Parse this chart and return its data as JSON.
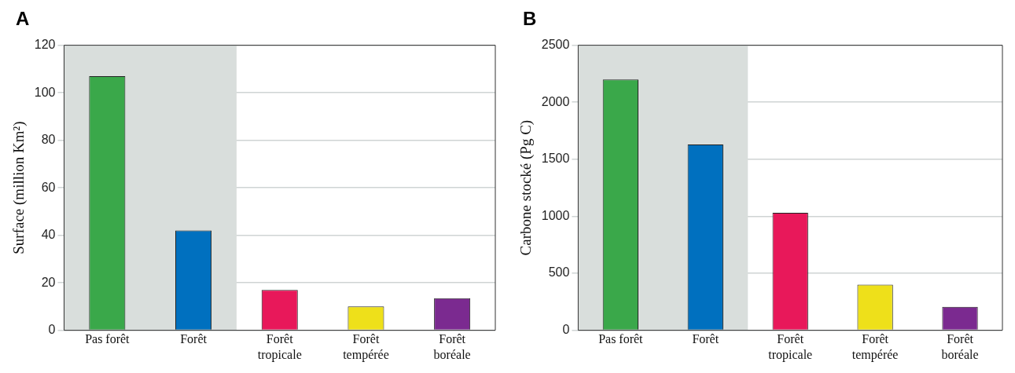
{
  "chart_data": [
    {
      "type": "bar",
      "title": "A",
      "ylabel": "Surface (million Km²)",
      "categories": [
        "Pas forêt",
        "Forêt",
        "Forêt tropicale",
        "Forêt tempérée",
        "Forêt boréale"
      ],
      "values": [
        107,
        42,
        17,
        10,
        13.5
      ],
      "colors": [
        "#3aa84a",
        "#0070bf",
        "#e8185a",
        "#eee01a",
        "#7b2a90"
      ],
      "ylim": [
        0,
        120
      ],
      "yticks": [
        0,
        20,
        40,
        60,
        80,
        100,
        120
      ],
      "grid": "y",
      "bands": [
        {
          "axis": "x",
          "from": "Pas forêt",
          "to": "Forêt",
          "color": "#d9dedc"
        }
      ]
    },
    {
      "type": "bar",
      "title": "B",
      "ylabel": "Carbone stocké (Pg C)",
      "categories": [
        "Pas forêt",
        "Forêt",
        "Forêt tropicale",
        "Forêt tempérée",
        "Forêt boréale"
      ],
      "values": [
        2200,
        1630,
        1030,
        400,
        205
      ],
      "colors": [
        "#3aa84a",
        "#0070bf",
        "#e8185a",
        "#eee01a",
        "#7b2a90"
      ],
      "ylim": [
        0,
        2500
      ],
      "yticks": [
        0,
        500,
        1000,
        1500,
        2000,
        2500
      ],
      "grid": "y",
      "bands": [
        {
          "axis": "x",
          "from": "Pas forêt",
          "to": "Forêt",
          "color": "#d9dedc"
        }
      ]
    }
  ]
}
